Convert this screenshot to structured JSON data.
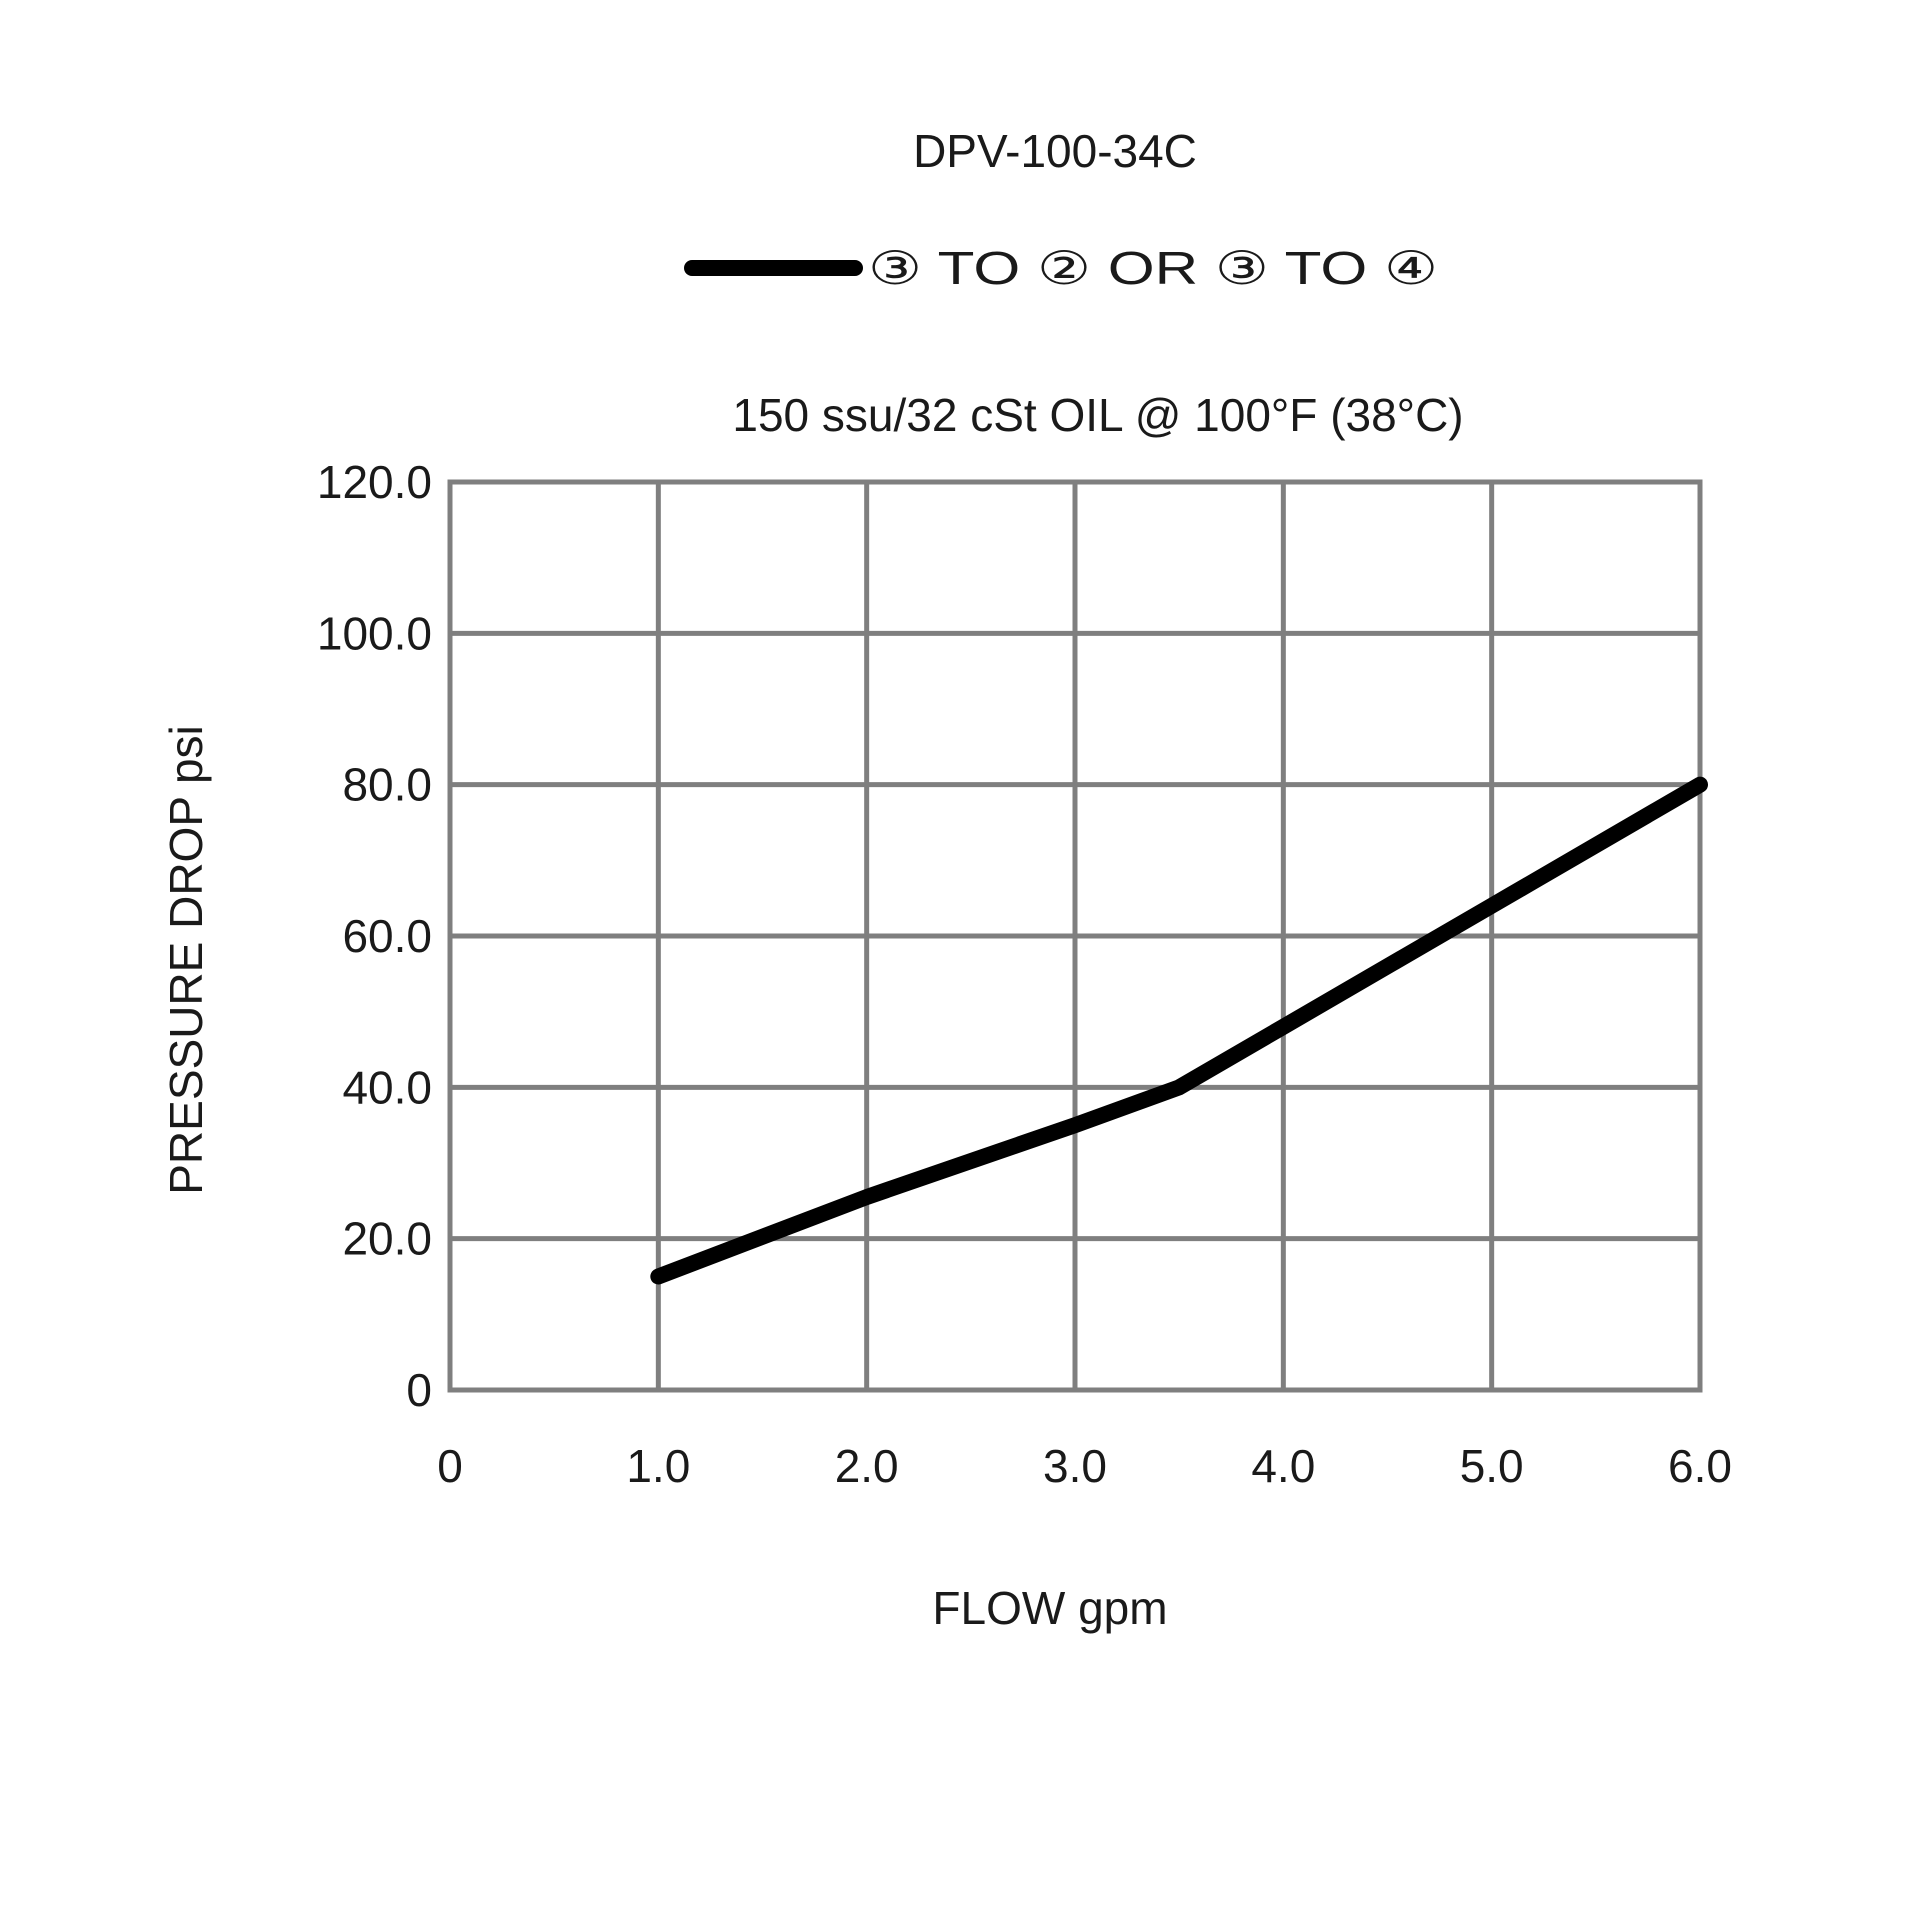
{
  "chart_data": {
    "type": "line",
    "title": "DPV-100-34C",
    "subtitle": "150 ssu/32 cSt OIL @ 100°F (38°C)",
    "xlabel": "FLOW gpm",
    "ylabel": "PRESSURE DROP psi",
    "xlim": [
      0,
      6
    ],
    "ylim": [
      0,
      120
    ],
    "x_ticks": [
      0,
      1,
      2,
      3,
      4,
      5,
      6
    ],
    "x_tick_labels": [
      "0",
      "1.0",
      "2.0",
      "3.0",
      "4.0",
      "5.0",
      "6.0"
    ],
    "y_ticks": [
      0,
      20,
      40,
      60,
      80,
      100,
      120
    ],
    "y_tick_labels": [
      "0",
      "20.0",
      "40.0",
      "60.0",
      "80.0",
      "100.0",
      "120.0"
    ],
    "grid": true,
    "legend_position": "top",
    "series": [
      {
        "name": "③ TO ② OR ③ TO ④",
        "color": "#000000",
        "x": [
          1.0,
          2.0,
          3.0,
          3.5,
          4.0,
          5.0,
          6.0
        ],
        "y": [
          15,
          25.5,
          35,
          40,
          48,
          64,
          80
        ]
      }
    ]
  }
}
